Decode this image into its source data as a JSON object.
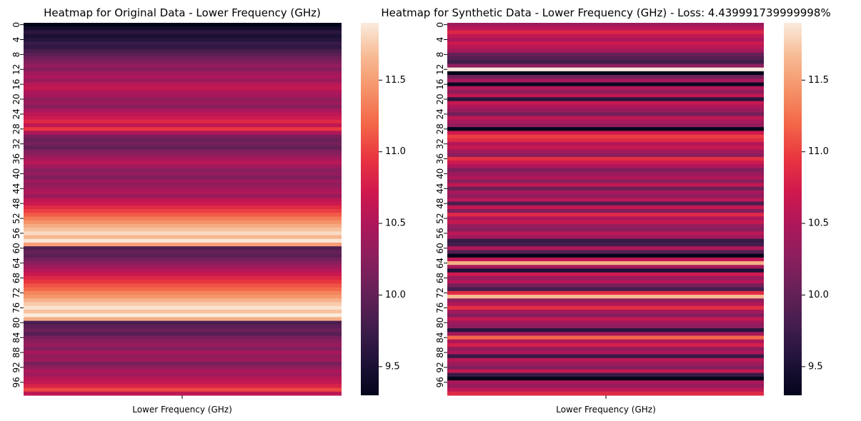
{
  "chart_data": [
    {
      "type": "heatmap",
      "title": "Heatmap for Original Data - Lower Frequency (GHz)",
      "xlabel": "Lower Frequency (GHz)",
      "ylabel": "",
      "y_tick_labels": [
        "0",
        "4",
        "8",
        "12",
        "16",
        "20",
        "24",
        "28",
        "32",
        "36",
        "40",
        "44",
        "48",
        "52",
        "56",
        "60",
        "64",
        "68",
        "72",
        "76",
        "80",
        "84",
        "88",
        "92",
        "96"
      ],
      "colorbar": {
        "ticks": [
          "9.5",
          "10.0",
          "10.5",
          "11.0",
          "11.5"
        ],
        "tick_values": [
          9.5,
          10.0,
          10.5,
          11.0,
          11.5
        ],
        "range": [
          9.3,
          11.9
        ]
      },
      "values": [
        9.3,
        9.45,
        9.62,
        9.5,
        9.58,
        9.72,
        9.66,
        9.82,
        9.95,
        10.08,
        10.2,
        10.32,
        10.22,
        10.4,
        10.48,
        10.36,
        10.56,
        10.64,
        10.5,
        10.44,
        10.3,
        10.38,
        10.24,
        10.46,
        10.58,
        10.7,
        10.86,
        10.62,
        10.96,
        10.5,
        10.16,
        10.05,
        10.12,
        9.98,
        10.2,
        10.3,
        10.44,
        10.56,
        10.4,
        10.25,
        10.32,
        10.2,
        10.38,
        10.3,
        10.42,
        10.5,
        10.36,
        10.6,
        10.7,
        10.86,
        11.0,
        11.14,
        11.3,
        11.44,
        11.58,
        11.7,
        11.82,
        11.64,
        11.88,
        11.5,
        9.86,
        10.02,
        9.94,
        10.12,
        10.26,
        10.4,
        10.54,
        10.68,
        10.84,
        10.96,
        11.1,
        11.2,
        11.36,
        11.46,
        11.62,
        11.74,
        11.86,
        11.7,
        11.9,
        11.6,
        9.84,
        9.96,
        10.06,
        9.92,
        10.14,
        10.26,
        10.36,
        10.2,
        10.44,
        10.3,
        10.38,
        10.14,
        10.3,
        10.48,
        10.4,
        10.56,
        10.64,
        10.8,
        11.04,
        10.6
      ]
    },
    {
      "type": "heatmap",
      "title": "Heatmap for Synthetic Data - Lower Frequency (GHz) - Loss: 4.439991739999998%",
      "xlabel": "Lower Frequency (GHz)",
      "ylabel": "",
      "y_tick_labels": [
        "0",
        "4",
        "8",
        "12",
        "16",
        "20",
        "24",
        "28",
        "32",
        "36",
        "40",
        "44",
        "48",
        "52",
        "56",
        "60",
        "64",
        "68",
        "72",
        "76",
        "80",
        "84",
        "88",
        "92",
        "96"
      ],
      "colorbar": {
        "ticks": [
          "9.5",
          "10.0",
          "10.5",
          "11.0",
          "11.5"
        ],
        "tick_values": [
          9.5,
          10.0,
          10.5,
          11.0,
          11.5
        ],
        "range": [
          9.3,
          11.9
        ]
      },
      "values": [
        10.4,
        10.56,
        10.84,
        10.62,
        10.48,
        10.7,
        10.56,
        10.42,
        10.02,
        9.9,
        9.78,
        10.28,
        11.9,
        9.3,
        10.1,
        10.44,
        9.36,
        10.52,
        10.3,
        10.62,
        9.6,
        10.66,
        10.48,
        10.34,
        10.12,
        10.58,
        10.44,
        10.3,
        9.3,
        10.72,
        11.0,
        10.86,
        10.52,
        10.66,
        10.4,
        10.26,
        10.9,
        10.7,
        10.48,
        10.18,
        10.36,
        10.5,
        10.26,
        10.62,
        10.06,
        10.44,
        10.3,
        10.56,
        9.84,
        10.64,
        10.2,
        10.86,
        10.48,
        10.66,
        10.34,
        10.24,
        10.58,
        10.4,
        9.7,
        9.78,
        10.5,
        9.9,
        9.3,
        10.6,
        11.6,
        10.44,
        9.52,
        10.7,
        10.36,
        10.54,
        10.12,
        9.8,
        10.86,
        11.66,
        10.3,
        10.52,
        10.9,
        10.42,
        10.2,
        10.64,
        10.38,
        10.28,
        9.6,
        10.44,
        11.2,
        10.5,
        10.76,
        10.3,
        10.48,
        9.7,
        10.56,
        10.4,
        10.2,
        10.62,
        9.7,
        9.3,
        10.46,
        10.34,
        10.6,
        10.86
      ]
    }
  ]
}
